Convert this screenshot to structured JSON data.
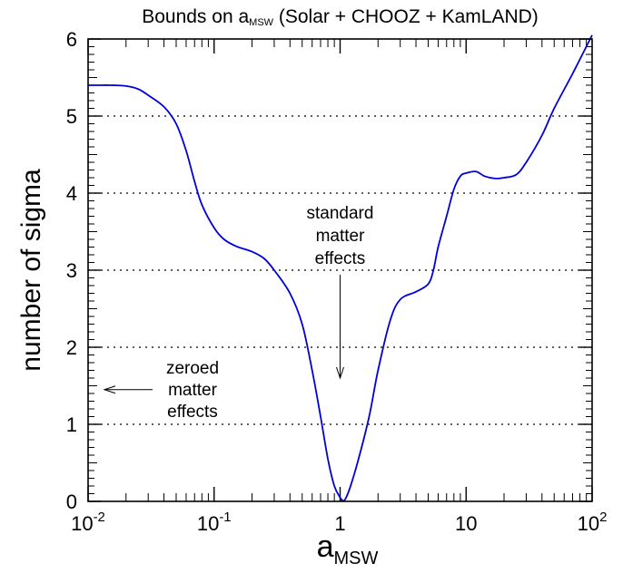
{
  "chart_data": {
    "type": "line",
    "title_prefix": "Bounds on ",
    "title_sym": "a",
    "title_sub": "MSW",
    "title_suffix": " (Solar + CHOOZ + KamLAND)",
    "ylabel": "number of sigma",
    "xlabel_main": "a",
    "xlabel_sub": "MSW",
    "x_scale": "log",
    "xlim": [
      0.01,
      100
    ],
    "ylim": [
      0,
      6
    ],
    "x_ticks": [
      {
        "value": 0.01,
        "base": "10",
        "exp": "-2"
      },
      {
        "value": 0.1,
        "base": "10",
        "exp": "-1"
      },
      {
        "value": 1,
        "base": "1",
        "exp": ""
      },
      {
        "value": 10,
        "base": "10",
        "exp": ""
      },
      {
        "value": 100,
        "base": "10",
        "exp": "2"
      }
    ],
    "y_ticks": [
      "0",
      "1",
      "2",
      "3",
      "4",
      "5",
      "6"
    ],
    "grid": {
      "horizontal_dotted_at": [
        1,
        2,
        3,
        4,
        5
      ]
    },
    "series": [
      {
        "color": "#0000dd",
        "x": [
          0.01,
          0.012,
          0.015,
          0.02,
          0.025,
          0.03,
          0.04,
          0.05,
          0.06,
          0.07,
          0.08,
          0.1,
          0.12,
          0.15,
          0.2,
          0.25,
          0.3,
          0.4,
          0.5,
          0.6,
          0.7,
          0.8,
          0.9,
          1.0,
          1.05,
          1.1,
          1.2,
          1.4,
          1.7,
          2.0,
          2.5,
          3.0,
          4.0,
          5.0,
          5.5,
          6.0,
          7.0,
          8.0,
          9.0,
          10.0,
          12.0,
          14.0,
          17.0,
          20.0,
          25.0,
          30.0,
          40.0,
          50.0,
          70.0,
          100.0
        ],
        "y": [
          5.4,
          5.4,
          5.4,
          5.39,
          5.35,
          5.27,
          5.12,
          4.9,
          4.55,
          4.15,
          3.85,
          3.55,
          3.4,
          3.31,
          3.24,
          3.15,
          3.0,
          2.7,
          2.3,
          1.7,
          1.1,
          0.55,
          0.2,
          0.05,
          0.01,
          0.03,
          0.18,
          0.55,
          1.1,
          1.7,
          2.35,
          2.62,
          2.72,
          2.82,
          3.0,
          3.3,
          3.7,
          4.05,
          4.22,
          4.26,
          4.28,
          4.22,
          4.19,
          4.2,
          4.24,
          4.4,
          4.75,
          5.1,
          5.55,
          6.05
        ]
      }
    ],
    "annotations": [
      {
        "lines": [
          "standard",
          "matter",
          "effects"
        ],
        "arrow": "down",
        "target_x": 1.0,
        "target_y": 1.6
      },
      {
        "lines": [
          "zeroed",
          "matter",
          "effects"
        ],
        "arrow": "left",
        "target_x": 0.01,
        "target_y": 1.45
      }
    ]
  }
}
